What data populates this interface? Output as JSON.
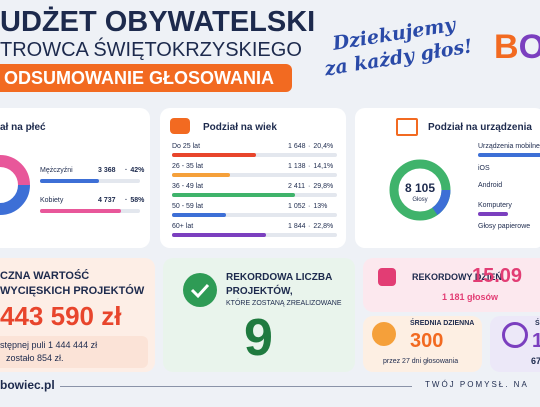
{
  "header": {
    "title": "UDŻET OBYWATELSKI",
    "subtitle": "TROWCA ŚWIĘTOKRZYSKIEGO",
    "banner": "ODSUMOWANIE GŁOSOWANIA",
    "thanks": [
      "Dziekujemy",
      "za każdy głos!"
    ],
    "logo": [
      "B",
      "O"
    ]
  },
  "gender": {
    "title": "ał na płeć",
    "rows": [
      {
        "label": "Mężczyźni",
        "count": "3 368",
        "share": {
          "value": 42,
          "label": "42%"
        }
      },
      {
        "label": "Kobiety",
        "count": "4 737",
        "share": {
          "value": 58,
          "label": "58%"
        }
      }
    ]
  },
  "age": {
    "title": "Podział na wiek",
    "rows": [
      {
        "label": "Do 25 lat",
        "count": "1 648",
        "share": {
          "value": 20.4,
          "label": "20,4%"
        }
      },
      {
        "label": "26 - 35 lat",
        "count": "1 138",
        "share": {
          "value": 14.1,
          "label": "14,1%"
        }
      },
      {
        "label": "36 - 49 lat",
        "count": "2 411",
        "share": {
          "value": 29.8,
          "label": "29,8%"
        }
      },
      {
        "label": "50 - 59 lat",
        "count": "1 052",
        "share": {
          "value": 13,
          "label": "13%"
        }
      },
      {
        "label": "60+ lat",
        "count": "1 844",
        "share": {
          "value": 22.8,
          "label": "22,8%"
        }
      }
    ]
  },
  "devices": {
    "title": "Podział na urządzenia",
    "total": "8 105",
    "total_label": "Głosy",
    "items": [
      "Urządzenia mobilne",
      "iOS",
      "Android",
      "Komputery",
      "Głosy papierowe"
    ]
  },
  "value_card": {
    "lines": [
      "CZNA WARTOŚĆ",
      "WYCIĘSKICH PROJEKTÓW"
    ],
    "amount": "443 590 zł",
    "note": [
      "stępnej puli 1 444 444 zł",
      "zostało 854 zł."
    ]
  },
  "projects_card": {
    "lines": [
      "REKORDOWA LICZBA",
      "PROJEKTÓW,"
    ],
    "sub": "KTÓRE ZOSTANĄ ZREALIZOWANE",
    "count": "9"
  },
  "record_day": {
    "label": "REKORDOWY DZIEŃ",
    "date": "15.09",
    "votes": "1 181 głosów"
  },
  "daily_avg": {
    "label": "ŚREDNIA DZIENNA",
    "value": "300",
    "note": "przez 27 dni głosowania"
  },
  "partial_card": {
    "label": "Ś",
    "value": "1",
    "sub": "67"
  },
  "footer": {
    "site": "bowiec.pl",
    "slogan": "TWÓJ POMYSŁ. NA"
  }
}
